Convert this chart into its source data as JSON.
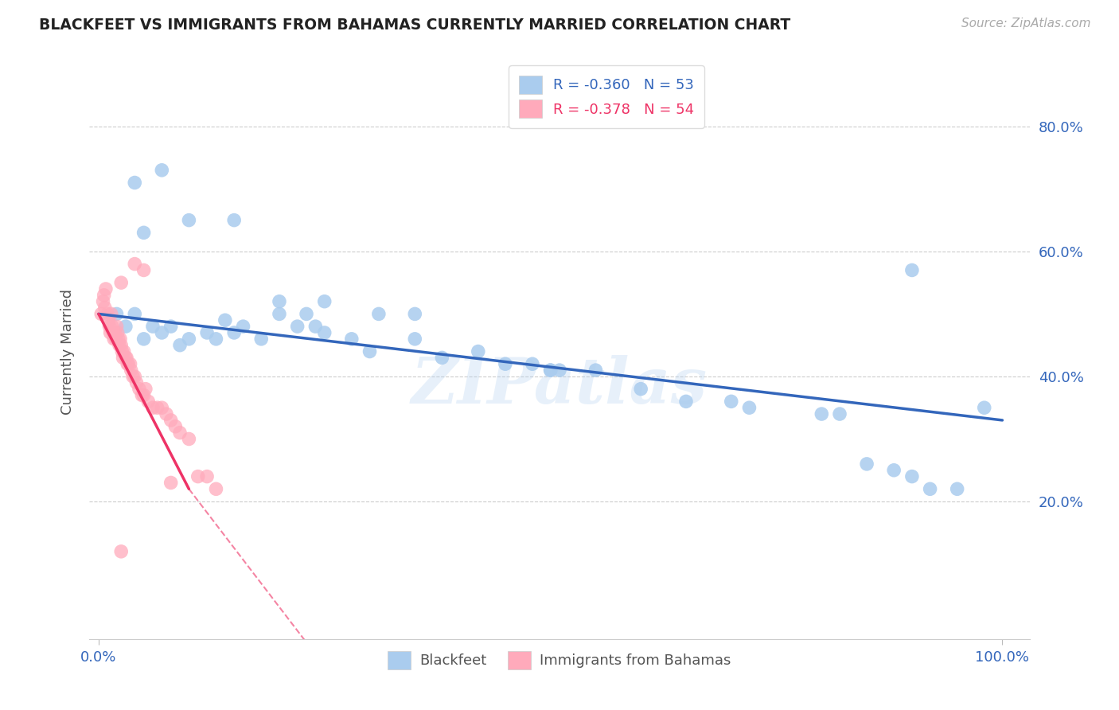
{
  "title": "BLACKFEET VS IMMIGRANTS FROM BAHAMAS CURRENTLY MARRIED CORRELATION CHART",
  "source": "Source: ZipAtlas.com",
  "ylabel": "Currently Married",
  "blue_r": "-0.360",
  "blue_n": "53",
  "pink_r": "-0.378",
  "pink_n": "54",
  "blue_color": "#AACCEE",
  "pink_color": "#FFAABB",
  "blue_line_color": "#3366BB",
  "pink_line_color": "#EE3366",
  "watermark": "ZIPatlas",
  "blue_x": [
    0.02,
    0.03,
    0.04,
    0.05,
    0.06,
    0.07,
    0.08,
    0.09,
    0.1,
    0.12,
    0.13,
    0.14,
    0.15,
    0.16,
    0.18,
    0.2,
    0.22,
    0.23,
    0.24,
    0.25,
    0.28,
    0.3,
    0.31,
    0.35,
    0.38,
    0.42,
    0.45,
    0.48,
    0.5,
    0.51,
    0.55,
    0.6,
    0.65,
    0.7,
    0.72,
    0.8,
    0.82,
    0.85,
    0.88,
    0.9,
    0.92,
    0.95,
    0.98,
    0.04,
    0.05,
    0.07,
    0.1,
    0.15,
    0.2,
    0.25,
    0.35,
    0.5,
    0.9
  ],
  "blue_y": [
    0.5,
    0.48,
    0.5,
    0.46,
    0.48,
    0.47,
    0.48,
    0.45,
    0.46,
    0.47,
    0.46,
    0.49,
    0.47,
    0.48,
    0.46,
    0.5,
    0.48,
    0.5,
    0.48,
    0.47,
    0.46,
    0.44,
    0.5,
    0.46,
    0.43,
    0.44,
    0.42,
    0.42,
    0.41,
    0.41,
    0.41,
    0.38,
    0.36,
    0.36,
    0.35,
    0.34,
    0.34,
    0.26,
    0.25,
    0.24,
    0.22,
    0.22,
    0.35,
    0.71,
    0.63,
    0.73,
    0.65,
    0.65,
    0.52,
    0.52,
    0.5,
    0.41,
    0.57
  ],
  "pink_x": [
    0.003,
    0.005,
    0.006,
    0.007,
    0.008,
    0.01,
    0.011,
    0.012,
    0.013,
    0.014,
    0.015,
    0.016,
    0.017,
    0.018,
    0.019,
    0.02,
    0.021,
    0.022,
    0.023,
    0.024,
    0.025,
    0.026,
    0.027,
    0.028,
    0.03,
    0.031,
    0.032,
    0.033,
    0.035,
    0.036,
    0.038,
    0.04,
    0.042,
    0.045,
    0.048,
    0.05,
    0.052,
    0.055,
    0.06,
    0.065,
    0.07,
    0.075,
    0.08,
    0.085,
    0.09,
    0.1,
    0.11,
    0.12,
    0.13,
    0.025,
    0.04,
    0.05,
    0.08,
    0.025
  ],
  "pink_y": [
    0.5,
    0.52,
    0.53,
    0.51,
    0.54,
    0.5,
    0.49,
    0.48,
    0.47,
    0.5,
    0.48,
    0.47,
    0.46,
    0.47,
    0.46,
    0.48,
    0.47,
    0.46,
    0.45,
    0.46,
    0.45,
    0.44,
    0.43,
    0.44,
    0.43,
    0.43,
    0.42,
    0.42,
    0.42,
    0.41,
    0.4,
    0.4,
    0.39,
    0.38,
    0.37,
    0.37,
    0.38,
    0.36,
    0.35,
    0.35,
    0.35,
    0.34,
    0.33,
    0.32,
    0.31,
    0.3,
    0.24,
    0.24,
    0.22,
    0.55,
    0.58,
    0.57,
    0.23,
    0.12
  ]
}
